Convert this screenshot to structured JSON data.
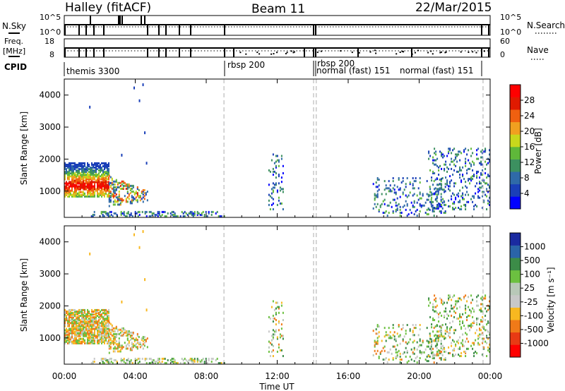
{
  "header": {
    "station": "Halley (fitACF)",
    "beam": "Beam 11",
    "date": "22/Mar/2015"
  },
  "summary_panels": {
    "nsky": {
      "left_label": "N.Sky",
      "right_label": "N.Search",
      "left_ticks": [
        "10^5",
        "10^0"
      ],
      "right_ticks": [
        "10^5",
        "10^0"
      ]
    },
    "freq": {
      "left_label_line1": "Freq.",
      "left_label_line2": "[MHz]",
      "right_label": "Nave",
      "left_ticks": [
        "18",
        "8"
      ],
      "right_ticks": [
        "60",
        "0"
      ]
    },
    "cpid": {
      "label": "CPID",
      "segments": [
        "themis 3300",
        "rbsp 200",
        "rbsp 200",
        "normal (fast) 151",
        "normal (fast) 151"
      ]
    }
  },
  "colors": {
    "power_scale": [
      "#0000ff",
      "#1a3fb8",
      "#2f6aa8",
      "#3c9060",
      "#5fb83a",
      "#c8d81c",
      "#f0a020",
      "#f06010",
      "#e01a00",
      "#ff0000"
    ],
    "velocity_scale": [
      "#ff0000",
      "#e83a14",
      "#f07a18",
      "#f8b820",
      "#c8c8c8",
      "#b8c8b8",
      "#6cc040",
      "#3c8c48",
      "#2a64a8",
      "#1a2aa0"
    ],
    "mode_change_line": "#bbbbbb"
  },
  "chart_data": [
    {
      "type": "heatmap",
      "title": "Power",
      "ylabel": "Slant Range [km]",
      "ylim": [
        180,
        4500
      ],
      "yticks": [
        "4000",
        "3000",
        "2000",
        "1000"
      ],
      "xlim_hours": [
        0,
        24
      ],
      "colorbar": {
        "label": "Power [dB]",
        "range": [
          0,
          32
        ],
        "ticks": [
          "28",
          "24",
          "20",
          "16",
          "12",
          "8",
          "4"
        ]
      },
      "mode_change_times_hours": [
        9.0,
        14.05,
        14.2,
        23.6
      ],
      "echo_regions": [
        {
          "t_start": 0.0,
          "t_end": 2.5,
          "range_min_km": 800,
          "range_max_km": 1850,
          "power_db": [
            6,
            28
          ]
        },
        {
          "t_start": 2.5,
          "t_end": 4.7,
          "range_min_km": 500,
          "range_max_km": 1450,
          "power_db": [
            4,
            24
          ]
        },
        {
          "t_start": 1.5,
          "t_end": 9.0,
          "range_min_km": 180,
          "range_max_km": 350,
          "power_db": [
            4,
            20
          ]
        },
        {
          "t_start": 11.5,
          "t_end": 12.3,
          "range_min_km": 400,
          "range_max_km": 2150,
          "power_db": [
            4,
            14
          ]
        },
        {
          "t_start": 17.3,
          "t_end": 21.5,
          "range_min_km": 200,
          "range_max_km": 1400,
          "power_db": [
            4,
            18
          ]
        },
        {
          "t_start": 20.5,
          "t_end": 24.0,
          "range_min_km": 400,
          "range_max_km": 2300,
          "power_db": [
            4,
            16
          ]
        }
      ]
    },
    {
      "type": "heatmap",
      "title": "Velocity",
      "ylabel": "Slant Range [km]",
      "ylim": [
        180,
        4500
      ],
      "yticks": [
        "4000",
        "3000",
        "2000",
        "1000"
      ],
      "xlim_hours": [
        0,
        24
      ],
      "xlabel": "Time UT",
      "xticks": [
        "00:00",
        "04:00",
        "08:00",
        "12:00",
        "16:00",
        "20:00",
        "00:00"
      ],
      "colorbar": {
        "label": "Velocity [m s⁻¹]",
        "ticks": [
          "1000",
          "500",
          "100",
          "25",
          "-25",
          "-100",
          "-500",
          "-1000"
        ]
      },
      "mode_change_times_hours": [
        9.0,
        14.05,
        14.2,
        23.6
      ],
      "echo_regions": [
        {
          "t_start": 0.0,
          "t_end": 2.5,
          "range_min_km": 800,
          "range_max_km": 1850,
          "velocity_ms": [
            -500,
            100
          ]
        },
        {
          "t_start": 2.5,
          "t_end": 4.7,
          "range_min_km": 500,
          "range_max_km": 1450,
          "velocity_ms": [
            -500,
            100
          ]
        },
        {
          "t_start": 1.5,
          "t_end": 9.0,
          "range_min_km": 180,
          "range_max_km": 350,
          "velocity_ms": [
            -100,
            100
          ]
        },
        {
          "t_start": 11.5,
          "t_end": 12.3,
          "range_min_km": 400,
          "range_max_km": 2150,
          "velocity_ms": [
            -500,
            100
          ]
        },
        {
          "t_start": 17.3,
          "t_end": 21.5,
          "range_min_km": 200,
          "range_max_km": 1400,
          "velocity_ms": [
            -500,
            500
          ]
        },
        {
          "t_start": 20.5,
          "t_end": 24.0,
          "range_min_km": 400,
          "range_max_km": 2300,
          "velocity_ms": [
            -100,
            500
          ]
        }
      ]
    }
  ]
}
